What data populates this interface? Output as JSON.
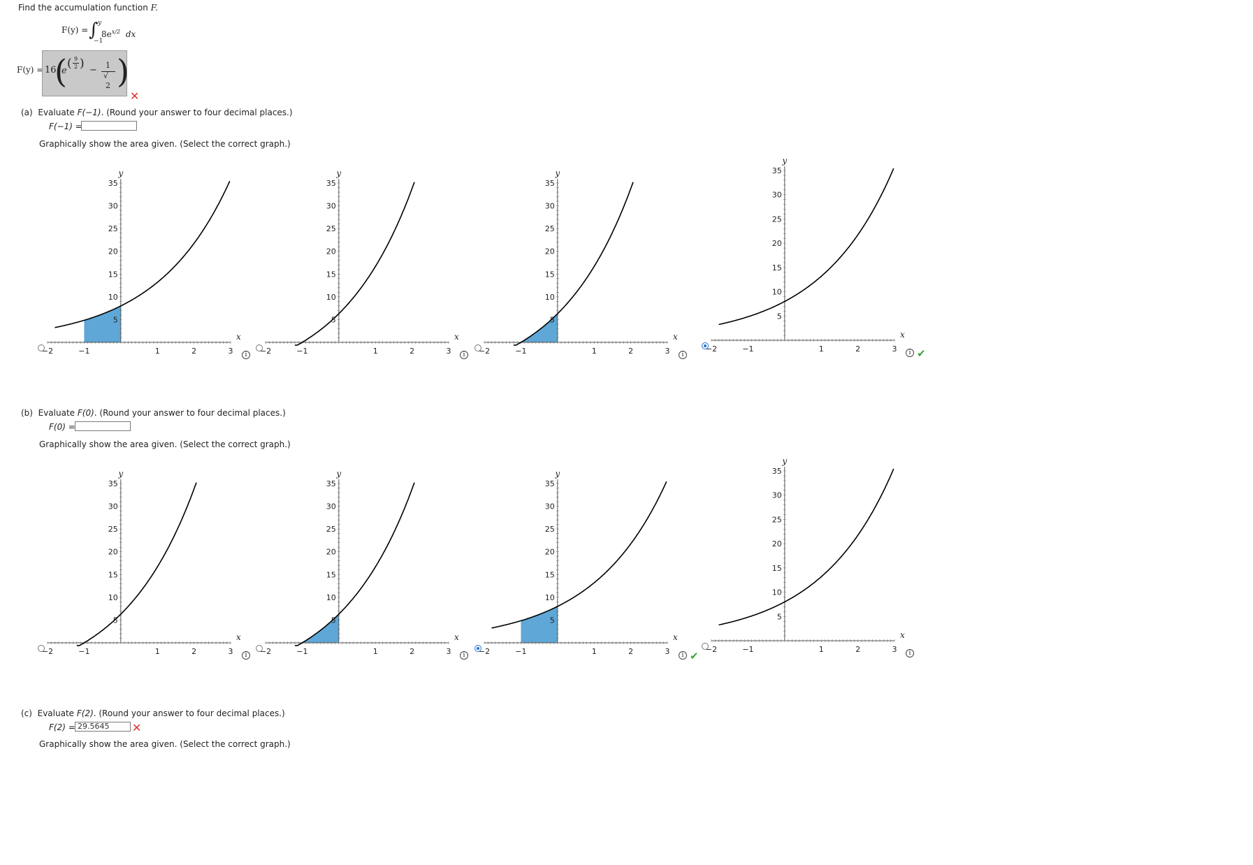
{
  "question": {
    "prompt_prefix": "Find the accumulation function ",
    "prompt_var": "F.",
    "integral": {
      "lhs": "F(y) =",
      "upper": "y",
      "lower": "−1",
      "integrand": "8e",
      "exponent": "x/2",
      "dx": "dx"
    },
    "answer": {
      "lhs": "F(y) =",
      "coef": "16",
      "e": "e",
      "exp_num": "9",
      "exp_den": "2",
      "minus": "−",
      "frac_num": "1",
      "frac_den_sqrt": "√",
      "frac_den": "2",
      "status": "✕"
    }
  },
  "parts": [
    {
      "label": "(a)",
      "text_prefix": "Evaluate ",
      "text_expr": "F(−1)",
      "text_suffix": ". (Round your answer to four decimal places.)",
      "field_label": "F(−1) =",
      "field_value": "",
      "graph_prompt": "Graphically show the area given. (Select the correct graph.)",
      "selected_graph": 4
    },
    {
      "label": "(b)",
      "text_prefix": "Evaluate ",
      "text_expr": "F(0)",
      "text_suffix": ". (Round your answer to four decimal places.)",
      "field_label": "F(0) =",
      "field_value": "",
      "graph_prompt": "Graphically show the area given. (Select the correct graph.)",
      "selected_graph": 3
    },
    {
      "label": "(c)",
      "text_prefix": "Evaluate ",
      "text_expr": "F(2)",
      "text_suffix": ". (Round your answer to four decimal places.)",
      "field_label": "F(2) =",
      "field_value": "29.5645",
      "status": "✕",
      "graph_prompt": "Graphically show the area given. (Select the correct graph.)"
    }
  ],
  "graph_axes": {
    "x_label": "x",
    "y_label": "y",
    "x_ticks": [
      "−2",
      "−1",
      "1",
      "2",
      "3"
    ],
    "y_ticks": [
      "5",
      "10",
      "15",
      "20",
      "25",
      "30",
      "35"
    ]
  },
  "icons": {
    "info": "info-icon",
    "check": "checkmark-icon",
    "error": "x-mark-icon"
  },
  "colors": {
    "shade": "#5ea7d6",
    "curve": "#000000",
    "error": "#d9322e",
    "correct": "#3aa53a",
    "radio": "#1f6fd1"
  },
  "chart_data": [
    {
      "type": "line",
      "group": "a",
      "option": 1,
      "curve": "8e^(x/2)",
      "shade_x": [
        -1,
        0
      ],
      "xlim": [
        -2,
        3
      ],
      "ylim": [
        0,
        35
      ]
    },
    {
      "type": "line",
      "group": "a",
      "option": 2,
      "curve": "16e^(x/2)-16e^(-1/2)",
      "shade_x": [],
      "xlim": [
        -2,
        3
      ],
      "ylim": [
        0,
        35
      ]
    },
    {
      "type": "line",
      "group": "a",
      "option": 3,
      "curve": "16e^(x/2)-16e^(-1/2)",
      "shade_x": [
        -1,
        0
      ],
      "xlim": [
        -2,
        3
      ],
      "ylim": [
        0,
        35
      ]
    },
    {
      "type": "line",
      "group": "a",
      "option": 4,
      "curve": "8e^(x/2)",
      "shade_x": [],
      "xlim": [
        -2,
        3
      ],
      "ylim": [
        0,
        35
      ],
      "selected": true,
      "correct": true
    },
    {
      "type": "line",
      "group": "b",
      "option": 1,
      "curve": "16e^(x/2)-16e^(-1/2)",
      "shade_x": [],
      "xlim": [
        -2,
        3
      ],
      "ylim": [
        0,
        35
      ]
    },
    {
      "type": "line",
      "group": "b",
      "option": 2,
      "curve": "16e^(x/2)-16e^(-1/2)",
      "shade_x": [
        -1,
        0
      ],
      "xlim": [
        -2,
        3
      ],
      "ylim": [
        0,
        35
      ]
    },
    {
      "type": "line",
      "group": "b",
      "option": 3,
      "curve": "8e^(x/2)",
      "shade_x": [
        -1,
        0
      ],
      "xlim": [
        -2,
        3
      ],
      "ylim": [
        0,
        35
      ],
      "selected": true,
      "correct": true
    },
    {
      "type": "line",
      "group": "b",
      "option": 4,
      "curve": "8e^(x/2)",
      "shade_x": [],
      "xlim": [
        -2,
        3
      ],
      "ylim": [
        0,
        35
      ]
    }
  ]
}
